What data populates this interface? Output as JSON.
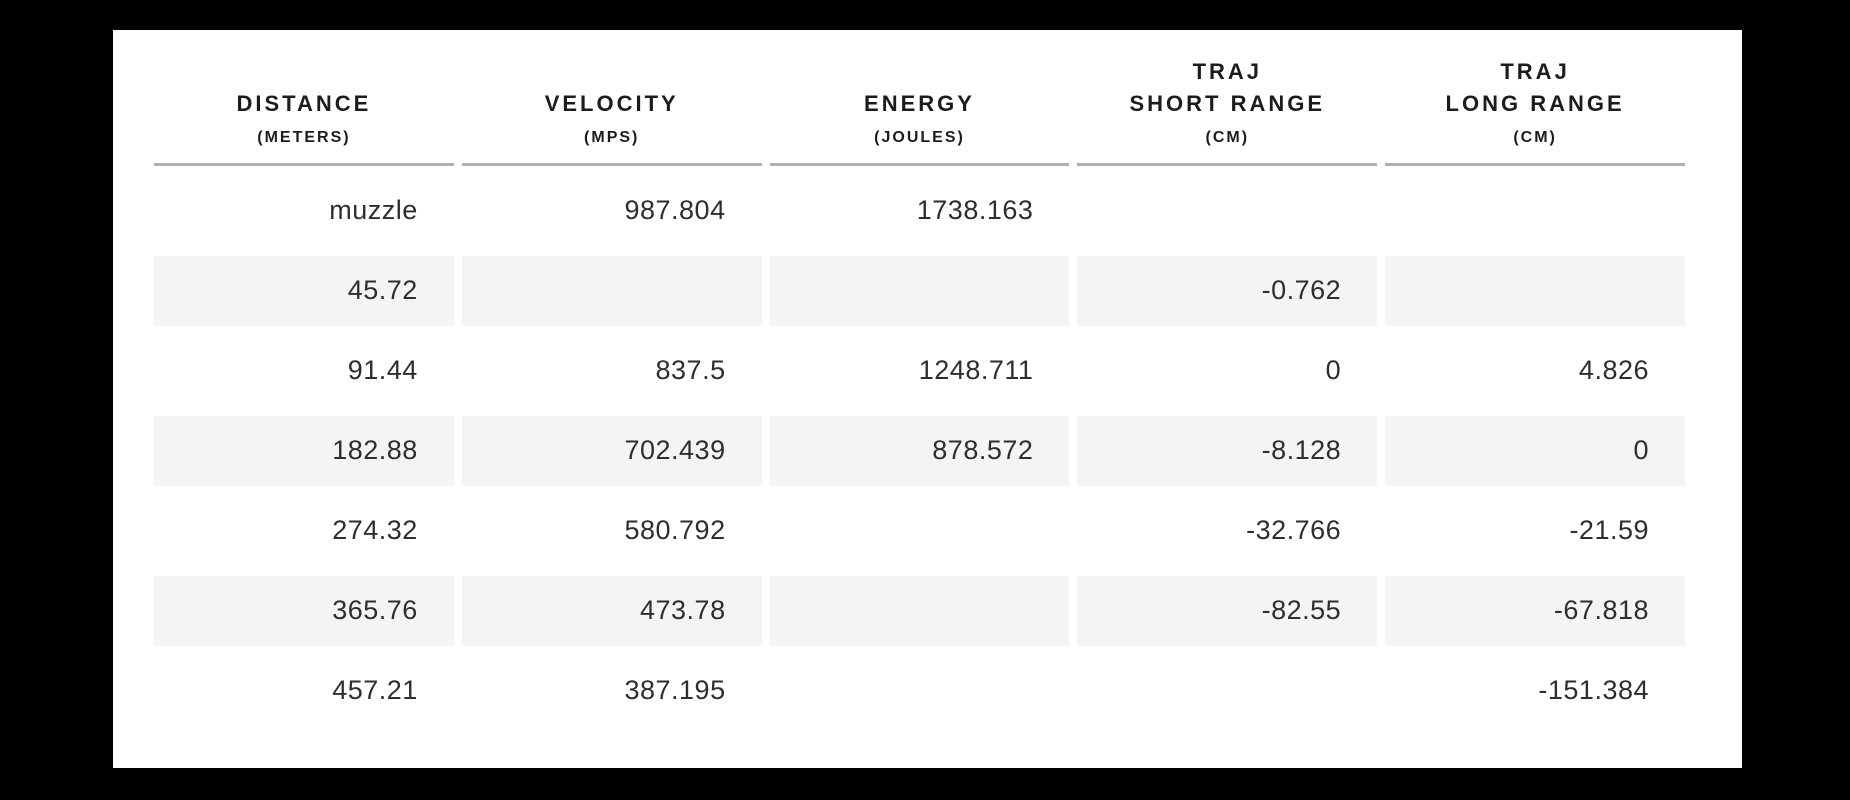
{
  "chart_data": {
    "type": "table",
    "columns": [
      {
        "title": "DISTANCE",
        "unit": "(METERS)"
      },
      {
        "title": "VELOCITY",
        "unit": "(MPS)"
      },
      {
        "title": "ENERGY",
        "unit": "(JOULES)"
      },
      {
        "title": "TRAJ\nSHORT RANGE",
        "unit": "(CM)"
      },
      {
        "title": "TRAJ\nLONG RANGE",
        "unit": "(CM)"
      }
    ],
    "rows": [
      [
        "muzzle",
        "987.804",
        "1738.163",
        "",
        ""
      ],
      [
        "45.72",
        "",
        "",
        "-0.762",
        ""
      ],
      [
        "91.44",
        "837.5",
        "1248.711",
        "0",
        "4.826"
      ],
      [
        "182.88",
        "702.439",
        "878.572",
        "-8.128",
        "0"
      ],
      [
        "274.32",
        "580.792",
        "",
        "-32.766",
        "-21.59"
      ],
      [
        "365.76",
        "473.78",
        "",
        "-82.55",
        "-67.818"
      ],
      [
        "457.21",
        "387.195",
        "",
        "",
        "-151.384"
      ]
    ]
  },
  "colors": {
    "page_background": "#000000",
    "card_background": "#ffffff",
    "stripe_background": "#f4f4f4",
    "header_rule": "#b0b0b0",
    "header_text": "#1c1c1c",
    "cell_text": "#2e2e2e"
  }
}
